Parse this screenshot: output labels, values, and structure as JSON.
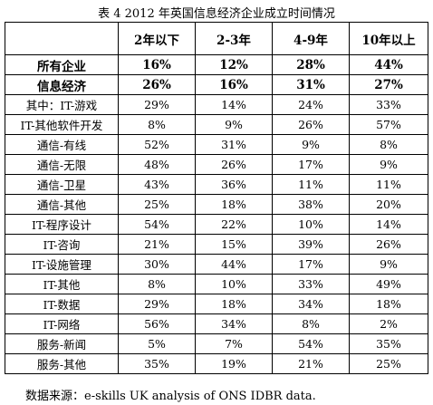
{
  "title": "表 4 2012 年英国信息经济企业成立时间情况",
  "table": {
    "header": [
      "2年以下",
      "2-3年",
      "4-9年",
      "10年以上"
    ],
    "rows": [
      [
        "所有企业",
        "16%",
        "12%",
        "28%",
        "44%"
      ],
      [
        "信息经济",
        "26%",
        "16%",
        "31%",
        "27%"
      ],
      [
        "其中：IT-游戏",
        "29%",
        "14%",
        "24%",
        "33%"
      ],
      [
        "IT-其他软件开发",
        "8%",
        "9%",
        "26%",
        "57%"
      ],
      [
        "通信-有线",
        "52%",
        "31%",
        "9%",
        "8%"
      ],
      [
        "通信-无限",
        "48%",
        "26%",
        "17%",
        "9%"
      ],
      [
        "通信-卫星",
        "43%",
        "36%",
        "11%",
        "11%"
      ],
      [
        "通信-其他",
        "25%",
        "18%",
        "38%",
        "20%"
      ],
      [
        "IT-程序设计",
        "54%",
        "22%",
        "10%",
        "14%"
      ],
      [
        "IT-咨询",
        "21%",
        "15%",
        "39%",
        "26%"
      ],
      [
        "IT-设施管理",
        "30%",
        "44%",
        "17%",
        "9%"
      ],
      [
        "IT-其他",
        "8%",
        "10%",
        "33%",
        "49%"
      ],
      [
        "IT-数据",
        "29%",
        "18%",
        "34%",
        "18%"
      ],
      [
        "IT-网络",
        "56%",
        "34%",
        "8%",
        "2%"
      ],
      [
        "服务-新闻",
        "5%",
        "7%",
        "54%",
        "35%"
      ],
      [
        "服务-其他",
        "35%",
        "19%",
        "21%",
        "25%"
      ]
    ]
  },
  "source": "数据来源：e-skills UK analysis of ONS IDBR data."
}
